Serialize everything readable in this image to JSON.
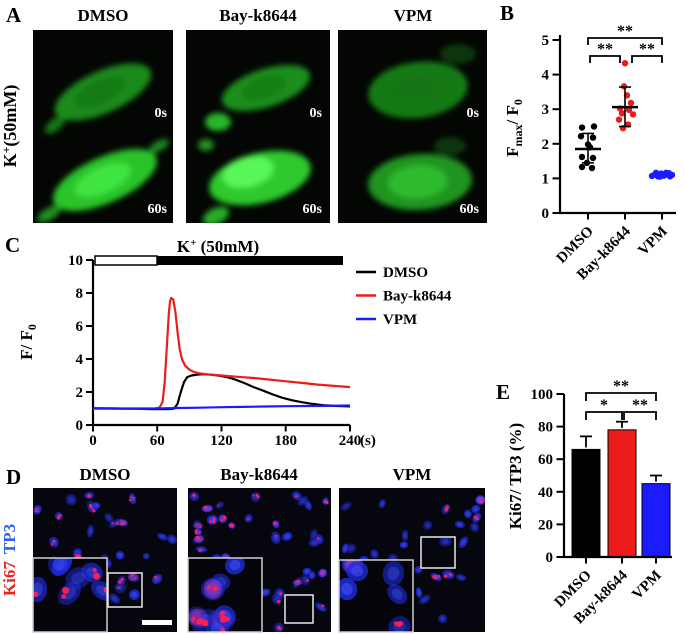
{
  "panel_a": {
    "label": "A",
    "columns": [
      "DMSO",
      "Bay-k8644",
      "VPM"
    ],
    "row_label": {
      "pre": "K",
      "sup": "+",
      "post": "(50mM)"
    },
    "timepoints": [
      "0s",
      "60s"
    ]
  },
  "panel_d": {
    "label": "D",
    "columns": [
      "DMSO",
      "Bay-k8644",
      "VPM"
    ],
    "row_label": [
      {
        "text": "Ki67",
        "color": "#e8231d"
      },
      {
        "text": "TP3",
        "color": "#2b63ee"
      }
    ]
  },
  "chart_data": [
    {
      "type": "scatter",
      "panel": "B",
      "ylabel": "Fmax/ F0",
      "ylabel_parts": {
        "f": "F",
        "sub": "max",
        "mid": "/ F",
        "sub2": "0"
      },
      "ylim": [
        0,
        5
      ],
      "yticks": [
        0,
        1,
        2,
        3,
        4,
        5
      ],
      "categories": [
        "DMSO",
        "Bay-k8644",
        "VPM"
      ],
      "groups": [
        {
          "name": "DMSO",
          "color": "#000000",
          "mean": 1.85,
          "sd_low": 1.45,
          "sd_high": 2.3,
          "points": [
            [
              -6,
              2.47
            ],
            [
              6,
              2.5
            ],
            [
              -7,
              2.22
            ],
            [
              5,
              2.18
            ],
            [
              0,
              1.98
            ],
            [
              2,
              1.9
            ],
            [
              -6,
              1.62
            ],
            [
              5,
              1.59
            ],
            [
              -1,
              1.45
            ],
            [
              -6,
              1.33
            ],
            [
              4,
              1.3
            ]
          ]
        },
        {
          "name": "Bay-k8644",
          "color": "#ed1c1c",
          "mean": 3.06,
          "sd_low": 2.5,
          "sd_high": 3.64,
          "points": [
            [
              0,
              4.33
            ],
            [
              -1,
              3.66
            ],
            [
              2,
              3.4
            ],
            [
              6,
              3.18
            ],
            [
              -5,
              3.02
            ],
            [
              4,
              2.98
            ],
            [
              -3,
              2.88
            ],
            [
              8,
              2.85
            ],
            [
              -6,
              2.7
            ],
            [
              3,
              2.56
            ],
            [
              -2,
              2.45
            ]
          ]
        },
        {
          "name": "VPM",
          "color": "#1b1bff",
          "mean": null,
          "points": [
            [
              -10,
              1.07
            ],
            [
              -7,
              1.12
            ],
            [
              -4,
              1.06
            ],
            [
              -1,
              1.14
            ],
            [
              2,
              1.08
            ],
            [
              5,
              1.12
            ],
            [
              8,
              1.06
            ],
            [
              10,
              1.1
            ],
            [
              -2,
              1.05
            ],
            [
              4,
              1.16
            ],
            [
              -6,
              1.16
            ],
            [
              7,
              1.15
            ]
          ]
        }
      ],
      "significance": [
        {
          "pair": "DMSO-VPM",
          "label": "**"
        },
        {
          "pair": "DMSO-Bay-k8644",
          "label": "**"
        },
        {
          "pair": "Bay-k8644-VPM",
          "label": "**"
        }
      ]
    },
    {
      "type": "line",
      "panel": "C",
      "title": "K+ (50mM)",
      "title_parts": {
        "pre": "K",
        "sup": "+",
        "post": " (50mM)"
      },
      "ylabel_parts": {
        "pre": "F/ F",
        "sub": "0"
      },
      "x_unit": "(s)",
      "xlim": [
        0,
        240
      ],
      "ylim": [
        0,
        10
      ],
      "xticks": [
        0,
        60,
        120,
        180,
        240
      ],
      "yticks": [
        0,
        2,
        4,
        6,
        8,
        10
      ],
      "stim_bar": {
        "off_range": [
          0,
          60
        ],
        "on_range": [
          60,
          240
        ]
      },
      "series": [
        {
          "name": "DMSO",
          "color": "#000000",
          "points": [
            [
              0,
              1.02
            ],
            [
              20,
              1.0
            ],
            [
              40,
              0.98
            ],
            [
              55,
              0.96
            ],
            [
              65,
              0.96
            ],
            [
              72,
              0.97
            ],
            [
              76,
              1.0
            ],
            [
              79,
              1.3
            ],
            [
              82,
              2.0
            ],
            [
              85,
              2.6
            ],
            [
              88,
              2.9
            ],
            [
              92,
              3.0
            ],
            [
              97,
              3.05
            ],
            [
              103,
              3.08
            ],
            [
              110,
              3.05
            ],
            [
              117,
              3.0
            ],
            [
              125,
              2.9
            ],
            [
              133,
              2.75
            ],
            [
              141,
              2.55
            ],
            [
              150,
              2.3
            ],
            [
              159,
              2.08
            ],
            [
              168,
              1.85
            ],
            [
              177,
              1.65
            ],
            [
              186,
              1.5
            ],
            [
              195,
              1.38
            ],
            [
              205,
              1.28
            ],
            [
              215,
              1.2
            ],
            [
              225,
              1.16
            ],
            [
              240,
              1.13
            ]
          ]
        },
        {
          "name": "Bay-k8644",
          "color": "#ed1c1c",
          "points": [
            [
              0,
              1.0
            ],
            [
              15,
              1.0
            ],
            [
              30,
              0.99
            ],
            [
              45,
              0.99
            ],
            [
              58,
              1.0
            ],
            [
              62,
              1.05
            ],
            [
              65,
              1.4
            ],
            [
              67,
              2.6
            ],
            [
              69,
              4.8
            ],
            [
              71,
              6.9
            ],
            [
              72,
              7.5
            ],
            [
              73,
              7.7
            ],
            [
              75,
              7.6
            ],
            [
              77,
              6.8
            ],
            [
              79,
              5.6
            ],
            [
              81,
              4.6
            ],
            [
              83,
              4.0
            ],
            [
              86,
              3.6
            ],
            [
              90,
              3.35
            ],
            [
              95,
              3.2
            ],
            [
              100,
              3.12
            ],
            [
              110,
              3.05
            ],
            [
              120,
              3.0
            ],
            [
              135,
              2.92
            ],
            [
              150,
              2.85
            ],
            [
              165,
              2.75
            ],
            [
              180,
              2.65
            ],
            [
              195,
              2.55
            ],
            [
              210,
              2.45
            ],
            [
              225,
              2.37
            ],
            [
              240,
              2.3
            ]
          ]
        },
        {
          "name": "VPM",
          "color": "#1b1bff",
          "points": [
            [
              0,
              1.0
            ],
            [
              30,
              1.0
            ],
            [
              60,
              1.0
            ],
            [
              80,
              1.03
            ],
            [
              100,
              1.05
            ],
            [
              120,
              1.08
            ],
            [
              140,
              1.1
            ],
            [
              160,
              1.12
            ],
            [
              180,
              1.14
            ],
            [
              200,
              1.15
            ],
            [
              220,
              1.16
            ],
            [
              240,
              1.18
            ]
          ]
        }
      ]
    },
    {
      "type": "bar",
      "panel": "E",
      "ylabel": "Ki67/ TP3 (%)",
      "ylim": [
        0,
        100
      ],
      "yticks": [
        0,
        20,
        40,
        60,
        80,
        100
      ],
      "categories": [
        "DMSO",
        "Bay-k8644",
        "VPM"
      ],
      "values": [
        66,
        78,
        45
      ],
      "errors": [
        8,
        5,
        5
      ],
      "colors": [
        "#000000",
        "#ed1c1c",
        "#1b1bff"
      ],
      "significance": [
        {
          "pair": "DMSO-VPM",
          "label": "**"
        },
        {
          "pair": "DMSO-Bay-k8644",
          "label": "*"
        },
        {
          "pair": "Bay-k8644-VPM",
          "label": "**"
        }
      ]
    }
  ]
}
